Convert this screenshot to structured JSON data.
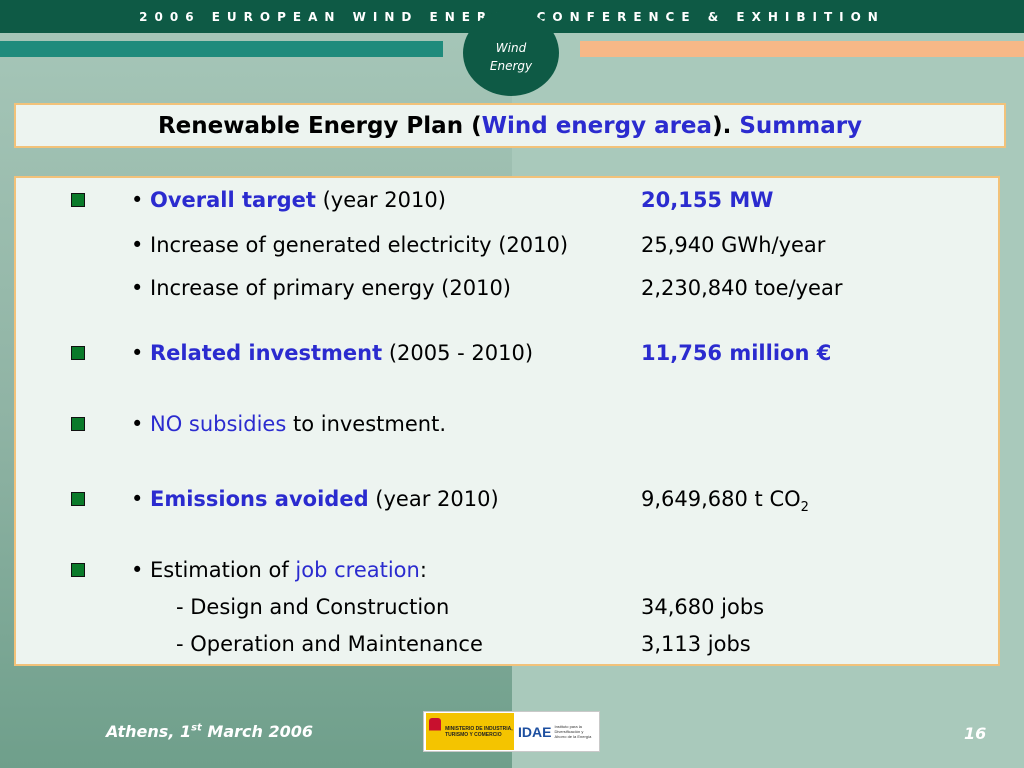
{
  "header": {
    "conference": "2006 EUROPEAN WIND ENERGY CONFERENCE & EXHIBITION",
    "logo_line1": "Wind",
    "logo_line2": "Energy"
  },
  "title": {
    "part1": "Renewable Energy Plan (",
    "part2": "Wind energy area",
    "part3": ").",
    "part4": "Summary"
  },
  "rows": [
    {
      "label_hl": "Overall target",
      "label_rest": " (year 2010)",
      "value": "20,155 MW"
    },
    {
      "label": "Increase of generated electricity (2010)",
      "value": "25,940 GWh/year"
    },
    {
      "label": "Increase of primary energy (2010)",
      "value": "2,230,840 toe/year"
    },
    {
      "label_hl": "Related investment",
      "label_rest": " (2005 - 2010)",
      "value": "11,756 million €"
    },
    {
      "label_hl": "NO subsidies",
      "label_rest": " to investment."
    },
    {
      "label_hl": "Emissions avoided",
      "label_rest": " (year 2010)",
      "value_main": "9,649,680 t CO",
      "value_sub": "2"
    },
    {
      "label_pre": "Estimation of ",
      "label_hl": "job creation",
      "label_rest": ":"
    },
    {
      "label": "- Design and Construction",
      "value": "34,680 jobs"
    },
    {
      "label": "- Operation and Maintenance",
      "value": "3,113 jobs"
    }
  ],
  "bullet": "•",
  "footer": {
    "place_pre": "Athens, 1",
    "place_sup": "st",
    "place_post": " March 2006",
    "page": "16",
    "ministry_text": "MINISTERIO DE INDUSTRIA, TURISMO Y COMERCIO",
    "idae_word": "IDAE",
    "idae_text": "Instituto para la Diversificación y Ahorro de la Energía"
  },
  "colors": {
    "accent_blue": "#2b2bcf",
    "header_green": "#0e5a45",
    "border_orange": "#f2c27a"
  }
}
